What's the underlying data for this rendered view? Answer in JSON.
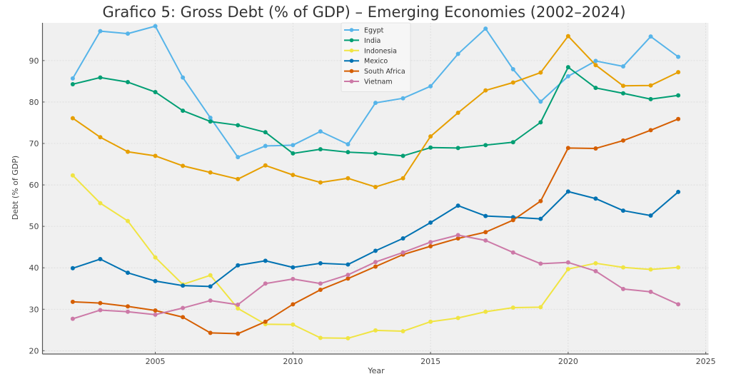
{
  "chart_data": {
    "type": "line",
    "title": "Grafico 5: Gross Debt (% of GDP) – Emerging Economies (2002–2024)",
    "xlabel": "Year",
    "ylabel": "Debt (% of GDP)",
    "xlim": [
      2000.9,
      2025.1
    ],
    "ylim": [
      19.2,
      99.1
    ],
    "xticks": [
      2005,
      2010,
      2015,
      2020,
      2025
    ],
    "xtick_labels": [
      "2005",
      "2010",
      "2015",
      "2020",
      "2025"
    ],
    "yticks": [
      20,
      30,
      40,
      50,
      60,
      70,
      80,
      90
    ],
    "ytick_labels": [
      "20",
      "30",
      "40",
      "50",
      "60",
      "70",
      "80",
      "90"
    ],
    "grid": true,
    "legend_position": "top-center",
    "x": [
      2002,
      2003,
      2004,
      2005,
      2006,
      2007,
      2008,
      2009,
      2010,
      2011,
      2012,
      2013,
      2014,
      2015,
      2016,
      2017,
      2018,
      2019,
      2020,
      2021,
      2022,
      2023,
      2024
    ],
    "series": [
      {
        "name": "Egypt",
        "in_legend": true,
        "color": "#56B4E9",
        "values": [
          85.7,
          97.1,
          96.5,
          98.3,
          85.9,
          76.2,
          66.7,
          69.4,
          69.6,
          72.9,
          69.8,
          79.8,
          80.9,
          83.8,
          91.6,
          97.7,
          87.9,
          80.1,
          86.2,
          89.9,
          88.6,
          95.8,
          90.9
        ]
      },
      {
        "name": "India",
        "in_legend": true,
        "color": "#009E73",
        "values": [
          84.3,
          85.9,
          84.8,
          82.4,
          77.9,
          75.3,
          74.4,
          72.7,
          67.6,
          68.6,
          67.9,
          67.6,
          67.0,
          69.0,
          68.9,
          69.6,
          70.3,
          75.1,
          88.4,
          83.4,
          82.1,
          80.7,
          81.6
        ]
      },
      {
        "name": "Indonesia",
        "in_legend": true,
        "color": "#F0E442",
        "values": [
          62.3,
          55.6,
          51.3,
          42.5,
          36.0,
          38.2,
          30.2,
          26.4,
          26.3,
          23.1,
          23.0,
          24.9,
          24.7,
          27.0,
          27.9,
          29.4,
          30.4,
          30.5,
          39.7,
          41.1,
          40.1,
          39.6,
          40.1
        ]
      },
      {
        "name": "Mexico",
        "in_legend": true,
        "color": "#0072B2",
        "values": [
          39.9,
          42.1,
          38.8,
          36.8,
          35.7,
          35.5,
          40.6,
          41.7,
          40.1,
          41.1,
          40.8,
          44.1,
          47.1,
          50.9,
          55.0,
          52.5,
          52.2,
          51.8,
          58.4,
          56.7,
          53.8,
          52.6,
          58.3
        ]
      },
      {
        "name": "South Africa",
        "in_legend": true,
        "color": "#D55E00",
        "values": [
          31.8,
          31.5,
          30.7,
          29.7,
          28.1,
          24.3,
          24.1,
          27.0,
          31.2,
          34.7,
          37.4,
          40.3,
          43.2,
          45.2,
          47.1,
          48.6,
          51.5,
          56.1,
          68.9,
          68.8,
          70.7,
          73.2,
          75.9
        ]
      },
      {
        "name": "Vietnam",
        "in_legend": true,
        "color": "#CC79A7",
        "values": [
          27.7,
          29.8,
          29.4,
          28.7,
          30.3,
          32.1,
          31.1,
          36.2,
          37.3,
          36.2,
          38.3,
          41.4,
          43.7,
          46.2,
          47.9,
          46.6,
          43.7,
          41.0,
          41.3,
          39.2,
          34.9,
          34.2,
          31.2
        ]
      },
      {
        "name": "",
        "in_legend": false,
        "color": "#E69F00",
        "values": [
          76.1,
          71.5,
          68.0,
          67.0,
          64.6,
          63.0,
          61.4,
          64.7,
          62.4,
          60.6,
          61.6,
          59.5,
          61.6,
          71.7,
          77.4,
          82.8,
          84.7,
          87.1,
          95.9,
          88.9,
          83.9,
          84.0,
          87.2
        ]
      }
    ]
  },
  "colors": {
    "plot_background": "#F0F0F0",
    "grid": "#DADADA",
    "spine": "#555555"
  }
}
